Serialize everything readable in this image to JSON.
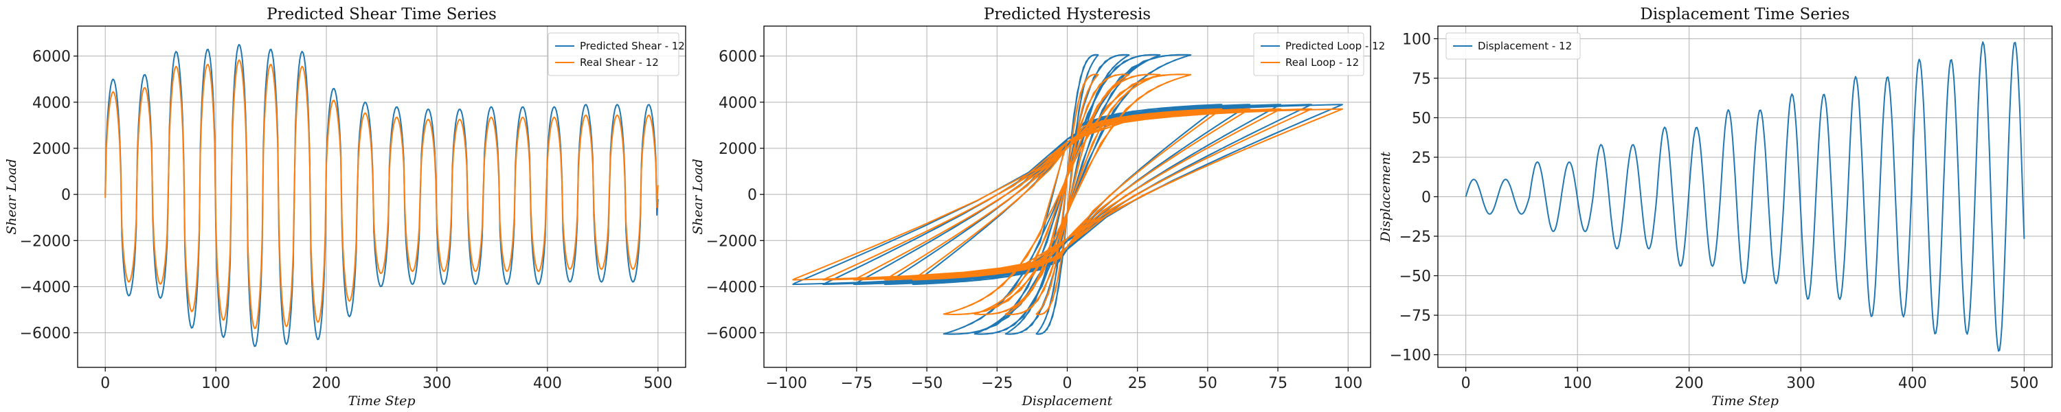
{
  "colors": {
    "blue": "#1f77b4",
    "orange": "#ff7f0e",
    "grid": "#b0b0b0"
  },
  "chart_data": [
    {
      "type": "line",
      "title": "Predicted Shear Time Series",
      "xlabel": "Time Step",
      "ylabel": "Shear Load",
      "xlim": [
        -25,
        525
      ],
      "ylim": [
        -7500,
        7300
      ],
      "xticks": [
        0,
        100,
        200,
        300,
        400,
        500
      ],
      "yticks": [
        -6000,
        -4000,
        -2000,
        0,
        2000,
        4000,
        6000
      ],
      "grid": true,
      "legend_position": "top-right",
      "x_source": "time_steps",
      "cycle_period": 28.5,
      "peaks_positive": [
        5000,
        5200,
        6200,
        6300,
        6500,
        6300,
        6200,
        4600,
        4000,
        3800,
        3700,
        3700,
        3800,
        3800,
        3800,
        3900,
        3900,
        3900
      ],
      "peaks_negative": [
        -4400,
        -4500,
        -5800,
        -6200,
        -6600,
        -6500,
        -6300,
        -5300,
        -4000,
        -3900,
        -3900,
        -3900,
        -3900,
        -3900,
        -3800,
        -3800,
        -3800,
        -3800
      ],
      "series": [
        {
          "name": "Predicted Shear - 12",
          "color": "#1f77b4",
          "scale": 1.0
        },
        {
          "name": "Real Shear - 12",
          "color": "#ff7f0e",
          "scale": 0.92
        }
      ]
    },
    {
      "type": "line",
      "title": "Predicted Hysteresis",
      "xlabel": "Displacement",
      "ylabel": "Shear Load",
      "xlim": [
        -108,
        108
      ],
      "ylim": [
        -7500,
        7300
      ],
      "xticks": [
        -100,
        -75,
        -50,
        -25,
        0,
        25,
        50,
        75,
        100
      ],
      "yticks": [
        -6000,
        -4000,
        -2000,
        0,
        2000,
        4000,
        6000
      ],
      "grid": true,
      "legend_position": "top-right",
      "series": [
        {
          "name": "Predicted Loop - 12",
          "color": "#1f77b4"
        },
        {
          "name": "Real Loop - 12",
          "color": "#ff7f0e"
        }
      ]
    },
    {
      "type": "line",
      "title": "Displacement Time Series",
      "xlabel": "Time Step",
      "ylabel": "Displacement",
      "xlim": [
        -25,
        525
      ],
      "ylim": [
        -108,
        108
      ],
      "xticks": [
        0,
        100,
        200,
        300,
        400,
        500
      ],
      "yticks": [
        -100,
        -75,
        -50,
        -25,
        0,
        25,
        50,
        75,
        100
      ],
      "grid": true,
      "legend_position": "top-left",
      "cycle_period": 28.5,
      "amplitudes": [
        11,
        11,
        22,
        22,
        33,
        33,
        44,
        44,
        55,
        55,
        65,
        65,
        76,
        76,
        87,
        87,
        98,
        98
      ],
      "series": [
        {
          "name": "Displacement - 12",
          "color": "#1f77b4"
        }
      ]
    }
  ]
}
